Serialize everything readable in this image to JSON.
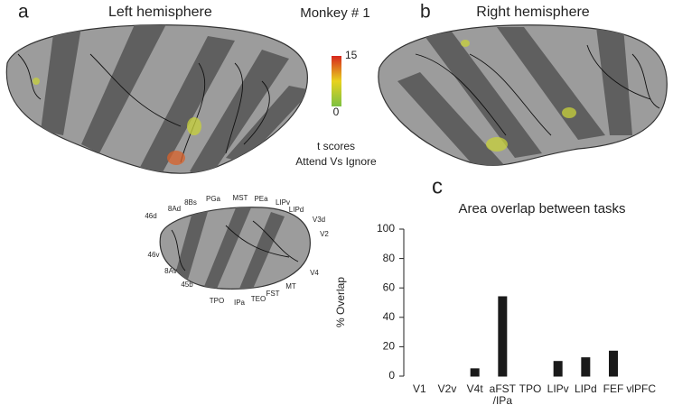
{
  "figure": {
    "panel_a": "a",
    "left_title": "Left hemisphere",
    "monkey": "Monkey # 1",
    "panel_b": "b",
    "right_title": "Right hemisphere",
    "panel_c": "c",
    "colorbar": {
      "ticks": [
        0,
        15
      ],
      "label": [
        "t scores",
        "Attend Vs Ignore"
      ]
    },
    "areas": [
      "46d",
      "8Ad",
      "8Bs",
      "PGa",
      "MST",
      "PEa",
      "LIPv",
      "LIPd",
      "V3d",
      "V2",
      "V4",
      "MT",
      "FST",
      "TEO",
      "IPa",
      "TPO",
      "45b",
      "8Av",
      "46v"
    ]
  },
  "chart_data": {
    "type": "bar",
    "title": "Area overlap between tasks",
    "y_label": "% Overlap",
    "categories": [
      "V1",
      "V2v",
      "V4t",
      "aFST\n/IPa",
      "TPO",
      "LIPv",
      "LIPd",
      "FEF",
      "vlPFC"
    ],
    "values": [
      0,
      0,
      5,
      54,
      0,
      10,
      12.5,
      17,
      0
    ],
    "color": "#1a1a1a",
    "ylim": [
      0,
      100
    ],
    "yticks": [
      0,
      20,
      40,
      60,
      80,
      100
    ],
    "grid": false
  }
}
